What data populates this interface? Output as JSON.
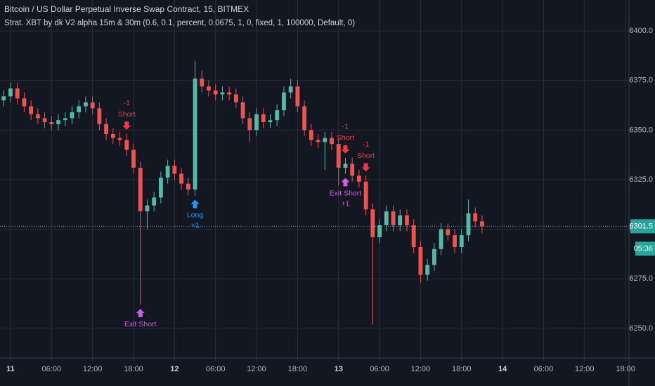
{
  "chart_data": {
    "type": "candlestick",
    "title": "Bitcoin / US Dollar Perpetual Inverse Swap Contract, 15, BITMEX",
    "subtitle": "Strat. XBT by dk V2 alpha 15m & 30m (0.6, 0.1, percent, 0.0675, 1, 0, fixed, 1, 100000, Default, 0)",
    "countdown": "05:36",
    "up_color": "#53b9a8",
    "down_color": "#ef5350",
    "grid": true,
    "x": [
      -1,
      0,
      1,
      2,
      3,
      4,
      5,
      6,
      7,
      8,
      9,
      10,
      11,
      12,
      13,
      14,
      15,
      16,
      17,
      18,
      19,
      20,
      21,
      22,
      23,
      24,
      25,
      26,
      27,
      28,
      29,
      30,
      31,
      32,
      33,
      34,
      35,
      36,
      37,
      38,
      39,
      40,
      41,
      42,
      43,
      44,
      45,
      46,
      47,
      48,
      49,
      50,
      51,
      52,
      53,
      54,
      55,
      56,
      57,
      58,
      59,
      60,
      61,
      62,
      63,
      64,
      65,
      66,
      67,
      68,
      69
    ],
    "open": [
      6365,
      6367,
      6371,
      6366,
      6362,
      6358,
      6356,
      6354,
      6353,
      6355,
      6356,
      6359,
      6362,
      6364,
      6361,
      6353,
      6348,
      6346,
      6345,
      6340,
      6331,
      6309,
      6312,
      6316,
      6326,
      6332,
      6328,
      6323,
      6320,
      6376,
      6372,
      6370,
      6368,
      6369,
      6368,
      6364,
      6356,
      6350,
      6358,
      6354,
      6355,
      6360,
      6369,
      6372,
      6362,
      6350,
      6345,
      6344,
      6346,
      6343,
      6331,
      6333,
      6327,
      6324,
      6310,
      6296,
      6302,
      6309,
      6302,
      6307,
      6302,
      6291,
      6277,
      6282,
      6290,
      6300,
      6297,
      6291,
      6297,
      6308,
      6304
    ],
    "high": [
      6370,
      6374,
      6374,
      6369,
      6365,
      6361,
      6359,
      6357,
      6358,
      6359,
      6362,
      6365,
      6367,
      6367,
      6364,
      6356,
      6351,
      6349,
      6348,
      6343,
      6334,
      6315,
      6319,
      6329,
      6335,
      6335,
      6331,
      6326,
      6385,
      6380,
      6375,
      6373,
      6372,
      6372,
      6371,
      6367,
      6359,
      6361,
      6361,
      6358,
      6363,
      6372,
      6376,
      6375,
      6365,
      6353,
      6348,
      6349,
      6349,
      6346,
      6336,
      6336,
      6330,
      6327,
      6313,
      6305,
      6312,
      6312,
      6310,
      6310,
      6305,
      6294,
      6285,
      6293,
      6303,
      6303,
      6300,
      6300,
      6315,
      6311,
      6307
    ],
    "low": [
      6362,
      6364,
      6363,
      6359,
      6355,
      6353,
      6351,
      6350,
      6350,
      6352,
      6353,
      6356,
      6359,
      6358,
      6350,
      6345,
      6343,
      6342,
      6337,
      6328,
      6262,
      6300,
      6309,
      6313,
      6323,
      6325,
      6320,
      6317,
      6317,
      6369,
      6367,
      6365,
      6365,
      6365,
      6361,
      6353,
      6344,
      6347,
      6351,
      6351,
      6352,
      6357,
      6366,
      6359,
      6347,
      6342,
      6341,
      6330,
      6340,
      6322,
      6328,
      6324,
      6321,
      6307,
      6252,
      6293,
      6299,
      6299,
      6299,
      6299,
      6288,
      6273,
      6274,
      6279,
      6287,
      6294,
      6288,
      6288,
      6294,
      6301,
      6298
    ],
    "close": [
      6367,
      6371,
      6366,
      6362,
      6358,
      6356,
      6354,
      6353,
      6355,
      6356,
      6359,
      6362,
      6364,
      6361,
      6353,
      6348,
      6346,
      6345,
      6340,
      6331,
      6309,
      6312,
      6316,
      6326,
      6332,
      6328,
      6323,
      6320,
      6376,
      6372,
      6370,
      6368,
      6369,
      6368,
      6364,
      6356,
      6350,
      6358,
      6354,
      6355,
      6360,
      6369,
      6372,
      6362,
      6350,
      6345,
      6344,
      6346,
      6343,
      6331,
      6333,
      6327,
      6324,
      6310,
      6296,
      6302,
      6309,
      6302,
      6307,
      6302,
      6291,
      6277,
      6282,
      6290,
      6300,
      6297,
      6291,
      6297,
      6308,
      6304,
      6301.5
    ],
    "signals": [
      {
        "x": 17,
        "label": "Short",
        "qty": "-1",
        "side": "above",
        "color": "#f23645"
      },
      {
        "x": 27,
        "label": "Long",
        "qty": "+1",
        "side": "below",
        "color": "#2196f3"
      },
      {
        "x": 49,
        "label": "Short",
        "qty": "-1",
        "side": "above",
        "color": "#f23645"
      },
      {
        "x": 52,
        "label": "Short",
        "qty": "-1",
        "side": "above",
        "color": "#f23645"
      },
      {
        "x": 49,
        "label": "Exit Short",
        "qty": "+1",
        "side": "below",
        "color": "#d05ce3"
      },
      {
        "x": 19,
        "label": "Exit Short",
        "side": "below",
        "color": "#d05ce3"
      }
    ],
    "xlim": [
      -1.54,
      90.5
    ],
    "xticks": [
      {
        "value": 0,
        "label": "11"
      },
      {
        "value": 6,
        "label": "06:00"
      },
      {
        "value": 12,
        "label": "12:00"
      },
      {
        "value": 18,
        "label": "18:00"
      },
      {
        "value": 24,
        "label": "12"
      },
      {
        "value": 30,
        "label": "06:00"
      },
      {
        "value": 36,
        "label": "12:00"
      },
      {
        "value": 42,
        "label": "18:00"
      },
      {
        "value": 48,
        "label": "13"
      },
      {
        "value": 54,
        "label": "06:00"
      },
      {
        "value": 60,
        "label": "12:00"
      },
      {
        "value": 66,
        "label": "18:00"
      },
      {
        "value": 72,
        "label": "14"
      },
      {
        "value": 78,
        "label": "06:00"
      },
      {
        "value": 84,
        "label": "12:00"
      },
      {
        "value": 90,
        "label": "18:00"
      }
    ],
    "ylim": [
      6235.1,
      6415.6
    ],
    "yticks": [
      {
        "value": 6250,
        "label": "6250.0"
      },
      {
        "value": 6275,
        "label": "6275.0"
      },
      {
        "value": 6300,
        "label": "6300.0"
      },
      {
        "value": 6325,
        "label": "6325.0"
      },
      {
        "value": 6350,
        "label": "6350.0"
      },
      {
        "value": 6375,
        "label": "6375.0"
      },
      {
        "value": 6400,
        "label": "6400.0"
      }
    ]
  }
}
